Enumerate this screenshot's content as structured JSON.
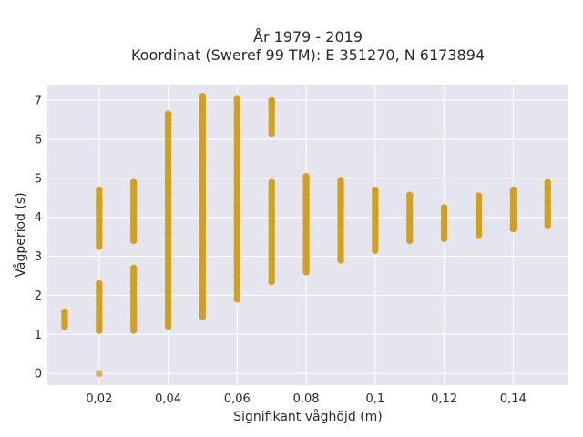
{
  "chart_data": {
    "type": "scatter",
    "title": "År 1979 - 2019",
    "subtitle": "Koordinat (Sweref 99 TM): E 351270, N 6173894",
    "xlabel": "Signifikant våghöjd (m)",
    "ylabel": "Vågperiod (s)",
    "xlim": [
      0.005,
      0.156
    ],
    "ylim": [
      -0.3,
      7.4
    ],
    "x_ticks": [
      0.02,
      0.04,
      0.06,
      0.08,
      0.1,
      0.12,
      0.14
    ],
    "x_tick_labels": [
      "0,02",
      "0,04",
      "0,06",
      "0,08",
      "0,1",
      "0,12",
      "0,14"
    ],
    "y_ticks": [
      0,
      1,
      2,
      3,
      4,
      5,
      6,
      7
    ],
    "y_tick_labels": [
      "0",
      "1",
      "2",
      "3",
      "4",
      "5",
      "6",
      "7"
    ],
    "grid": true,
    "legend": "none",
    "colors": {
      "marker": "#d4a017",
      "plot_bg": "#e5e5ef",
      "grid": "#ffffff"
    },
    "series": [
      {
        "x": [
          0.01,
          0.01,
          0.01,
          0.01,
          0.02,
          0.02,
          0.02,
          0.02,
          0.02,
          0.02,
          0.02,
          0.02,
          0.02,
          0.02,
          0.02,
          0.02,
          0.02,
          0.02,
          0.02,
          0.02,
          0.02,
          0.03,
          0.03,
          0.03,
          0.03,
          0.03,
          0.03,
          0.03,
          0.03,
          0.03,
          0.03,
          0.03,
          0.03,
          0.03,
          0.03,
          0.03,
          0.03,
          0.03,
          0.03,
          0.04,
          0.04,
          0.04,
          0.04,
          0.04,
          0.04,
          0.04,
          0.04,
          0.04,
          0.04,
          0.04,
          0.04,
          0.04,
          0.04,
          0.04,
          0.04,
          0.04,
          0.04,
          0.04,
          0.04,
          0.04,
          0.04,
          0.05,
          0.05,
          0.05,
          0.05,
          0.05,
          0.05,
          0.05,
          0.05,
          0.05,
          0.05,
          0.05,
          0.05,
          0.05,
          0.05,
          0.05,
          0.05,
          0.05,
          0.05,
          0.05,
          0.05,
          0.05,
          0.05,
          0.06,
          0.06,
          0.06,
          0.06,
          0.06,
          0.06,
          0.06,
          0.06,
          0.06,
          0.06,
          0.06,
          0.06,
          0.06,
          0.06,
          0.06,
          0.06,
          0.06,
          0.06,
          0.06,
          0.06,
          0.06,
          0.06,
          0.06,
          0.07,
          0.07,
          0.07,
          0.07,
          0.07,
          0.07,
          0.07,
          0.07,
          0.07,
          0.07,
          0.07,
          0.07,
          0.07,
          0.07,
          0.07,
          0.08,
          0.08,
          0.08,
          0.08,
          0.08,
          0.08,
          0.08,
          0.08,
          0.08,
          0.08,
          0.08,
          0.08,
          0.09,
          0.09,
          0.09,
          0.09,
          0.09,
          0.09,
          0.09,
          0.09,
          0.09,
          0.09,
          0.09,
          0.1,
          0.1,
          0.1,
          0.1,
          0.1,
          0.1,
          0.1,
          0.1,
          0.11,
          0.11,
          0.11,
          0.11,
          0.11,
          0.11,
          0.11,
          0.12,
          0.12,
          0.12,
          0.12,
          0.12,
          0.12,
          0.13,
          0.13,
          0.13,
          0.13,
          0.13,
          0.13,
          0.14,
          0.14,
          0.14,
          0.14,
          0.14,
          0.14,
          0.15,
          0.15,
          0.15,
          0.15,
          0.15,
          0.15,
          0.15,
          0.15
        ],
        "y": [
          1.2,
          1.22,
          1.53,
          1.58,
          0.0,
          1.1,
          1.3,
          1.5,
          1.7,
          1.9,
          2.1,
          2.3,
          3.25,
          3.5,
          3.7,
          3.9,
          4.1,
          4.25,
          4.35,
          4.45,
          4.7,
          1.1,
          1.3,
          1.5,
          1.7,
          1.9,
          2.1,
          2.3,
          2.5,
          2.7,
          3.4,
          3.6,
          3.8,
          4.0,
          4.2,
          4.4,
          4.6,
          4.8,
          4.9,
          1.2,
          1.5,
          1.8,
          2.1,
          2.4,
          2.7,
          3.0,
          3.35,
          3.95,
          4.3,
          4.6,
          4.9,
          5.2,
          5.5,
          5.8,
          6.1,
          6.3,
          6.4,
          6.5,
          6.65,
          5.0,
          3.6,
          1.45,
          1.8,
          2.1,
          2.4,
          2.7,
          3.0,
          3.3,
          3.6,
          3.9,
          4.05,
          4.45,
          4.7,
          5.0,
          5.3,
          5.6,
          5.9,
          6.2,
          6.45,
          6.55,
          7.0,
          7.1,
          5.5,
          1.9,
          2.2,
          2.5,
          2.8,
          3.1,
          3.4,
          3.7,
          4.0,
          4.3,
          4.5,
          5.25,
          5.4,
          5.6,
          5.8,
          6.0,
          6.2,
          6.4,
          6.6,
          6.8,
          7.0,
          7.05,
          5.0,
          3.0,
          2.35,
          2.7,
          3.0,
          3.3,
          3.6,
          3.9,
          4.2,
          4.5,
          4.8,
          4.9,
          6.15,
          6.3,
          6.75,
          6.95,
          7.0,
          2.6,
          2.9,
          3.2,
          3.5,
          3.8,
          4.1,
          4.3,
          4.45,
          4.6,
          4.85,
          5.05,
          3.0,
          2.9,
          3.2,
          3.5,
          3.8,
          4.1,
          4.3,
          4.4,
          4.6,
          4.7,
          4.85,
          4.95,
          3.15,
          3.4,
          3.6,
          3.8,
          4.0,
          4.15,
          4.5,
          4.7,
          3.4,
          3.6,
          3.8,
          4.0,
          4.2,
          4.55,
          4.57,
          3.45,
          3.6,
          3.75,
          3.85,
          4.1,
          4.25,
          3.55,
          3.7,
          3.85,
          4.0,
          4.2,
          4.55,
          3.7,
          3.8,
          3.95,
          4.15,
          4.6,
          4.7,
          3.8,
          3.95,
          4.1,
          4.2,
          4.4,
          4.55,
          4.75,
          4.9
        ]
      }
    ]
  }
}
